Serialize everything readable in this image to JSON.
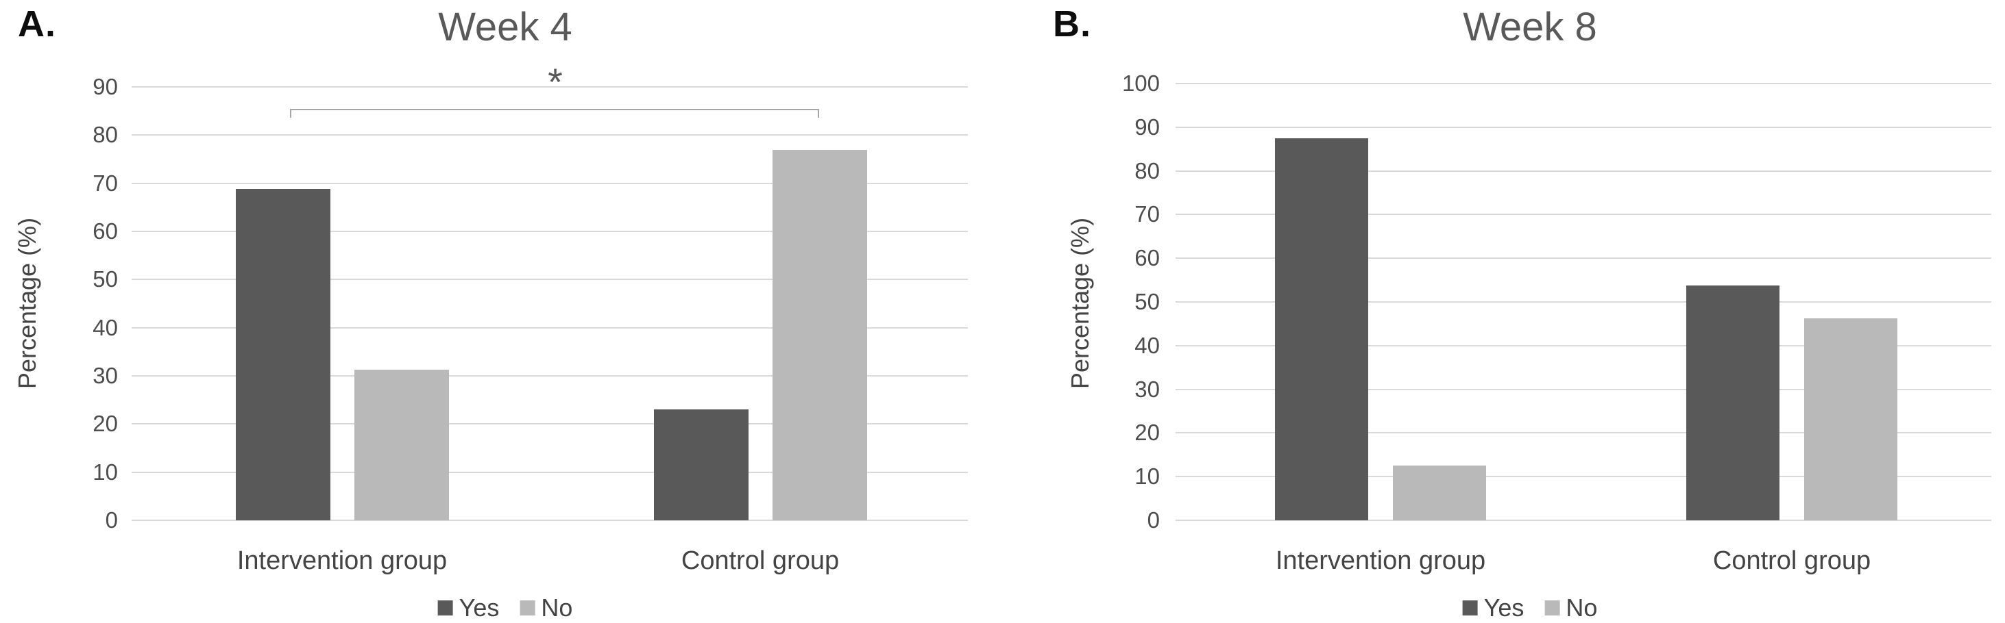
{
  "figure": {
    "panels": [
      {
        "letter": "A."
      },
      {
        "letter": "B."
      }
    ]
  },
  "chart_data": [
    {
      "type": "bar",
      "panel_letter": "A.",
      "title": "Week 4",
      "ylabel": "Percentage (%)",
      "xlabel": "",
      "categories": [
        "Intervention group",
        "Control group"
      ],
      "series": [
        {
          "name": "Yes",
          "color": "#595959",
          "values": [
            68.8,
            23.1
          ]
        },
        {
          "name": "No",
          "color": "#b9b9b9",
          "values": [
            31.3,
            76.9
          ]
        }
      ],
      "ylim": [
        0,
        90
      ],
      "yticks": [
        0,
        10,
        20,
        30,
        40,
        50,
        60,
        70,
        80,
        90
      ],
      "grid": true,
      "legend_position": "bottom",
      "annotation": {
        "type": "significance-bracket",
        "symbol": "*",
        "between": [
          "Intervention group",
          "Control group"
        ]
      }
    },
    {
      "type": "bar",
      "panel_letter": "B.",
      "title": "Week 8",
      "ylabel": "Percentage (%)",
      "xlabel": "",
      "categories": [
        "Intervention group",
        "Control group"
      ],
      "series": [
        {
          "name": "Yes",
          "color": "#595959",
          "values": [
            87.5,
            53.8
          ]
        },
        {
          "name": "No",
          "color": "#b9b9b9",
          "values": [
            12.5,
            46.2
          ]
        }
      ],
      "ylim": [
        0,
        100
      ],
      "yticks": [
        0,
        10,
        20,
        30,
        40,
        50,
        60,
        70,
        80,
        90,
        100
      ],
      "grid": true,
      "legend_position": "bottom"
    }
  ],
  "colors": {
    "background": "#ffffff",
    "series_yes": "#595959",
    "series_no": "#b9b9b9",
    "gridline": "#d9d9d9",
    "axis_text": "#4d4d4d",
    "title_text": "#595959",
    "bracket": "#a6a6a6"
  }
}
